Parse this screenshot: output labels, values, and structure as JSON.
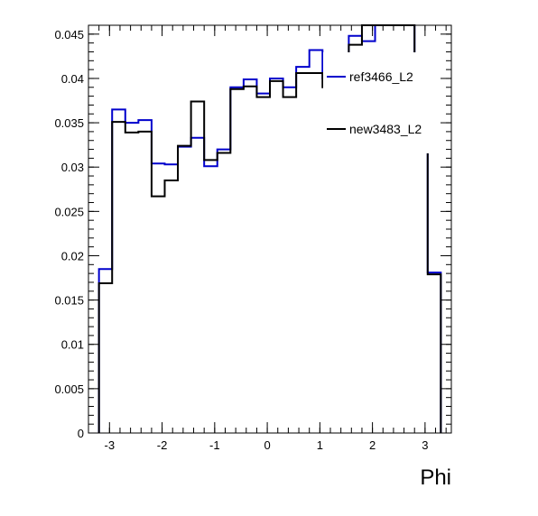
{
  "chart_data": {
    "type": "histogram",
    "title": "",
    "xlabel": "Phi",
    "ylabel": "",
    "xlim": [
      -3.4,
      3.5
    ],
    "ylim": [
      0,
      0.046
    ],
    "x_ticks": [
      -3,
      -2,
      -1,
      0,
      1,
      2,
      3
    ],
    "x_tick_labels": [
      "-3",
      "-2",
      "-1",
      "0",
      "1",
      "2",
      "3"
    ],
    "y_ticks": [
      0,
      0.005,
      0.01,
      0.015,
      0.02,
      0.025,
      0.03,
      0.035,
      0.04,
      0.045
    ],
    "y_tick_labels": [
      "0",
      "0.005",
      "0.01",
      "0.015",
      "0.02",
      "0.025",
      "0.03",
      "0.035",
      "0.04",
      "0.045"
    ],
    "grid": false,
    "legend_position": "top-right",
    "bin_edges": [
      -3.2,
      -2.95,
      -2.7,
      -2.45,
      -2.2,
      -1.95,
      -1.7,
      -1.45,
      -1.2,
      -0.95,
      -0.7,
      -0.45,
      -0.2,
      0.05,
      0.3,
      0.55,
      0.8,
      1.05,
      1.3,
      1.55,
      1.8,
      2.05,
      2.3,
      2.55,
      2.8,
      3.05,
      3.3
    ],
    "series": [
      {
        "name": "ref3466_L2",
        "color": "#0000cc",
        "values": [
          0.0185,
          0.0365,
          0.035,
          0.0353,
          0.0304,
          0.0303,
          0.0323,
          0.0333,
          0.0301,
          0.032,
          0.039,
          0.0399,
          0.0383,
          0.04,
          0.039,
          0.0413,
          0.0432,
          0.04,
          0.039,
          0.0448,
          0.0442,
          0.046,
          0.046,
          0.046,
          0.0342,
          0.0181
        ]
      },
      {
        "name": "new3483_L2",
        "color": "#000000",
        "values": [
          0.0169,
          0.0351,
          0.0339,
          0.034,
          0.0267,
          0.0285,
          0.0324,
          0.0374,
          0.0308,
          0.0316,
          0.0388,
          0.0391,
          0.0379,
          0.0397,
          0.0379,
          0.0406,
          0.0406,
          0.039,
          0.0412,
          0.0438,
          0.0462,
          0.046,
          0.046,
          0.046,
          0.0317,
          0.0179
        ]
      }
    ]
  }
}
